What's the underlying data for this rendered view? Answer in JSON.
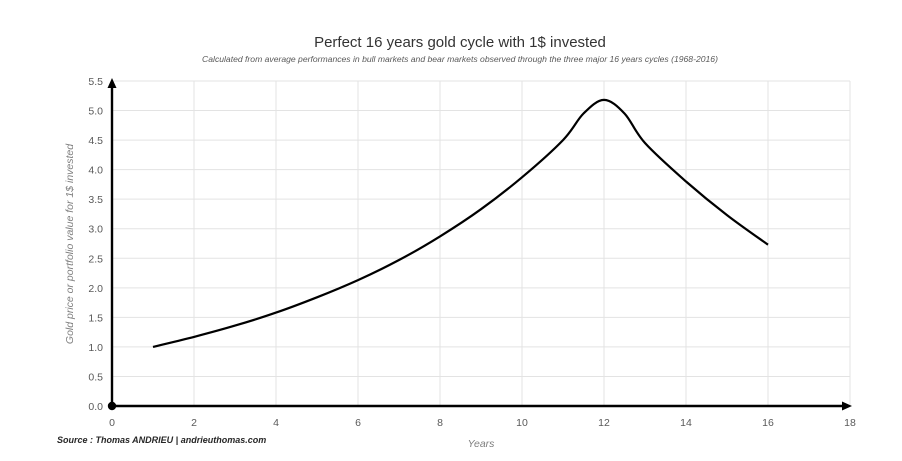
{
  "chart_data": {
    "type": "line",
    "title": "Perfect 16 years gold cycle with 1$ invested",
    "subtitle": "Calculated from average performances in bull markets and bear markets observed through the three major 16 years cycles (1968-2016)",
    "xlabel": "Years",
    "ylabel": "Gold price or portfolio value for 1$ invested",
    "source": "Source : Thomas ANDRIEU | andrieuthomas.com",
    "xlim": [
      0,
      18
    ],
    "ylim": [
      0,
      5.5
    ],
    "x_ticks": [
      "0",
      "2",
      "4",
      "6",
      "8",
      "10",
      "12",
      "14",
      "16",
      "18"
    ],
    "y_ticks": [
      "0.0",
      "0.5",
      "1.0",
      "1.5",
      "2.0",
      "2.5",
      "3.0",
      "3.5",
      "4.0",
      "4.5",
      "5.0",
      "5.5"
    ],
    "grid": true,
    "line_color": "#000000",
    "series": [
      {
        "x": [
          1,
          2,
          3,
          4,
          5,
          6,
          7,
          8,
          9,
          10,
          11,
          11.5,
          12,
          12.5,
          13,
          14,
          15,
          16
        ],
        "values": [
          1.0,
          1.17,
          1.36,
          1.58,
          1.84,
          2.13,
          2.47,
          2.87,
          3.33,
          3.87,
          4.5,
          4.95,
          5.18,
          4.95,
          4.45,
          3.8,
          3.23,
          2.73
        ]
      }
    ]
  }
}
